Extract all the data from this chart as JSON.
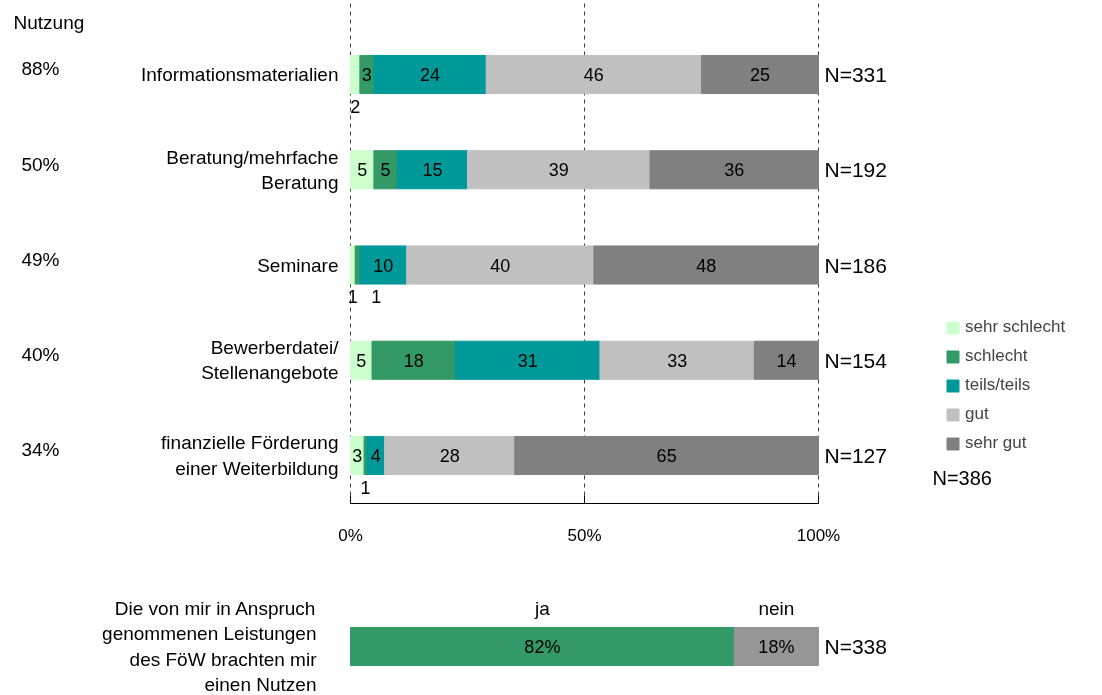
{
  "chart_data": [
    {
      "type": "bar",
      "orientation": "horizontal",
      "stacked": true,
      "categories": [
        "Informationsmaterialien",
        "Beratung/mehrfache Beratung",
        "Seminare",
        "Bewerberdatei/Stellenangebote",
        "finanzielle Förderung einer Weiterbildung"
      ],
      "series": [
        {
          "name": "sehr schlecht",
          "color": "#ccffcc",
          "values": [
            2,
            5,
            1,
            4.6,
            2.9
          ],
          "value_labels": [
            "2",
            "5",
            "1",
            "5",
            "3"
          ]
        },
        {
          "name": "schlecht",
          "color": "#339966",
          "values": [
            3,
            5,
            1,
            17.8,
            0.6
          ],
          "value_labels": [
            "3",
            "5",
            "1",
            "18",
            "1"
          ]
        },
        {
          "name": "teils/teils",
          "color": "#009999",
          "values": [
            24,
            15,
            10,
            30.9,
            3.8
          ],
          "value_labels": [
            "24",
            "15",
            "10",
            "31",
            "4"
          ]
        },
        {
          "name": "gut",
          "color": "#c0c0c0",
          "values": [
            46,
            39,
            40,
            33,
            27.8
          ],
          "value_labels": [
            "46",
            "39",
            "40",
            "33",
            "28"
          ]
        },
        {
          "name": "sehr gut",
          "color": "#808080",
          "values": [
            25,
            36,
            48,
            13.7,
            64.9
          ],
          "value_labels": [
            "25",
            "36",
            "48",
            "14",
            "65"
          ]
        }
      ],
      "xlim": [
        0,
        100
      ],
      "xticks": [
        {
          "value": 0,
          "label": "0%"
        },
        {
          "value": 50,
          "label": "50%"
        },
        {
          "value": 100,
          "label": "100%"
        }
      ],
      "grid": "x",
      "legend": "right",
      "annotations": [
        "Nutzung",
        "88%",
        "50%",
        "49%",
        "40%",
        "34%",
        "N=331",
        "N=192",
        "N=186",
        "N=154",
        "N=127",
        "N=386"
      ]
    },
    {
      "type": "bar",
      "orientation": "horizontal",
      "stacked": true,
      "categories": [
        "Die von mir in Anspruch genommenen Leistungen des FöW brachten mir einen Nutzen"
      ],
      "series": [
        {
          "name": "ja",
          "color": "#339966",
          "values": [
            82
          ],
          "value_labels": [
            "82%"
          ]
        },
        {
          "name": "nein",
          "color": "#969696",
          "values": [
            18
          ],
          "value_labels": [
            "18%"
          ]
        }
      ],
      "tick_labels": "y",
      "annotations": [
        "N=338"
      ]
    }
  ]
}
